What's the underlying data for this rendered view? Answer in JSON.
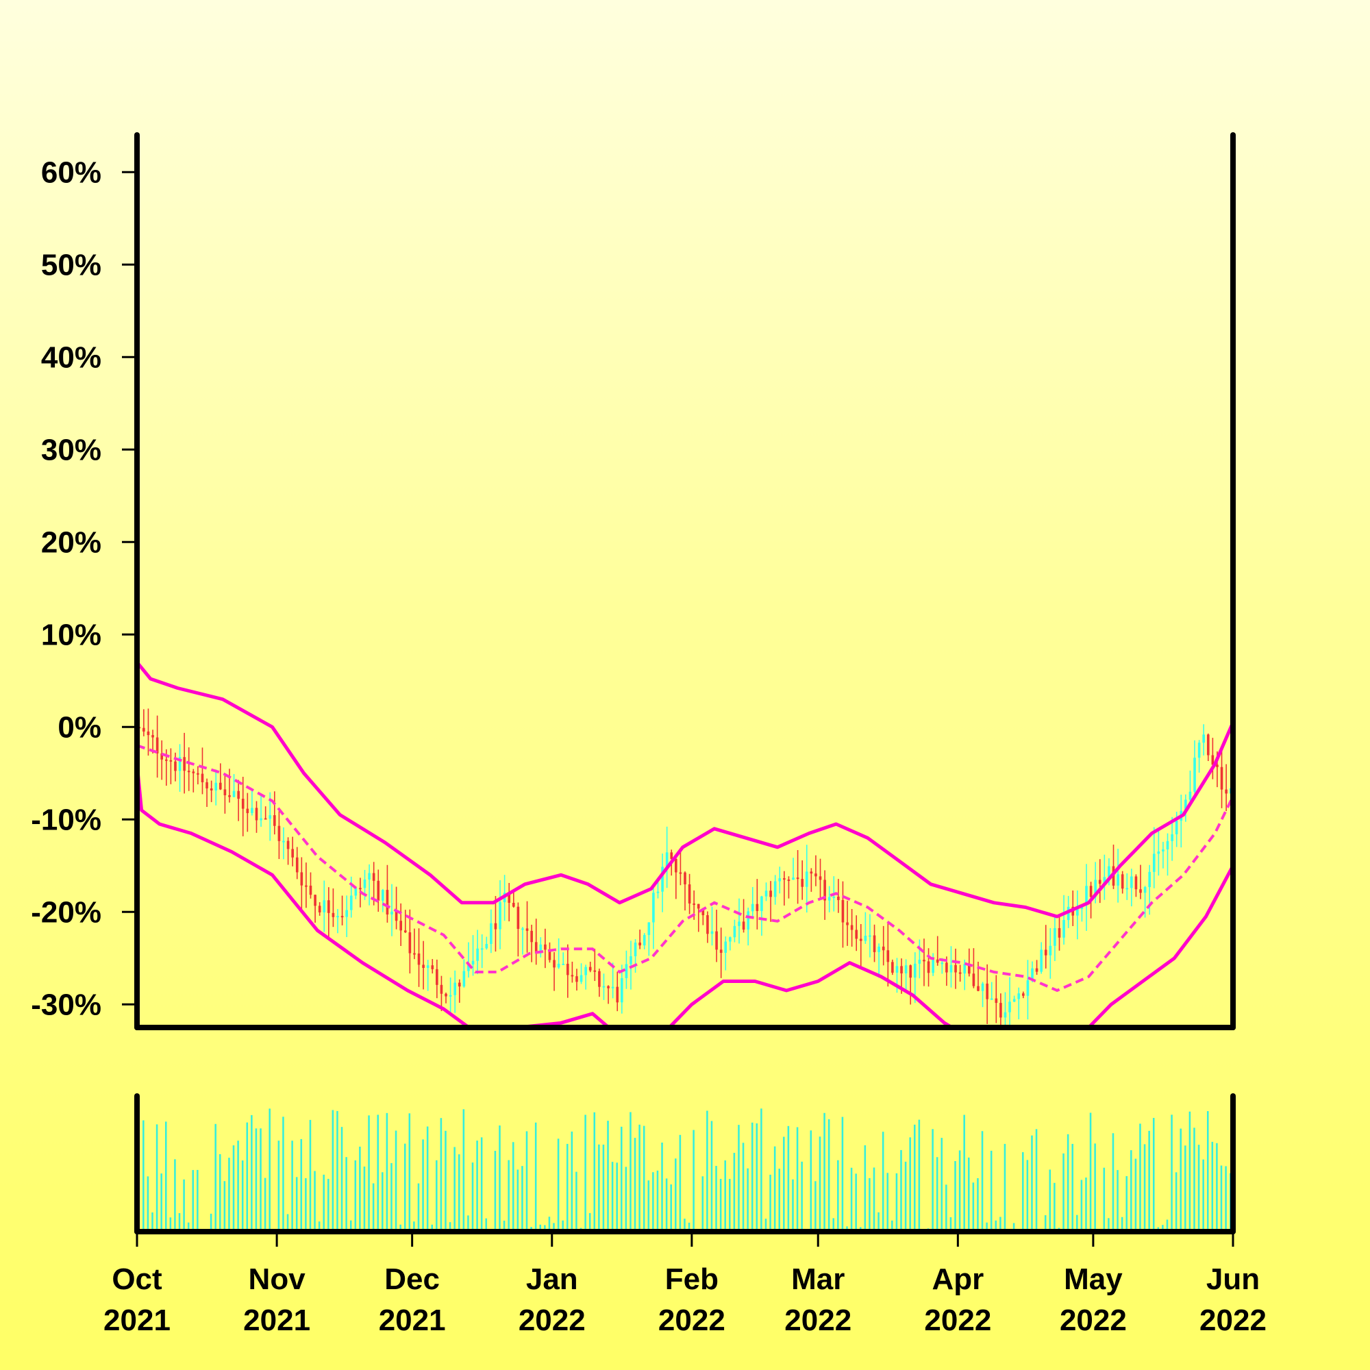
{
  "chart_data": {
    "type": "candlestick",
    "title": "",
    "xlabel": "",
    "ylabel": "",
    "y_unit": "%",
    "ylim": [
      -32.5,
      67.5
    ],
    "y_ticks": [
      60,
      50,
      40,
      30,
      20,
      10,
      0,
      -10,
      -20,
      -30
    ],
    "y_tick_labels": [
      "60%",
      "50%",
      "40%",
      "30%",
      "20%",
      "10%",
      "0%",
      "-10%",
      "-20%",
      "-30%"
    ],
    "x_range": [
      "2021-10-01",
      "2022-06-01"
    ],
    "x_ticks": [
      {
        "date": "2021-10-01",
        "month": "Oct",
        "year": "2021"
      },
      {
        "date": "2021-11-01",
        "month": "Nov",
        "year": "2021"
      },
      {
        "date": "2021-12-01",
        "month": "Dec",
        "year": "2021"
      },
      {
        "date": "2022-01-01",
        "month": "Jan",
        "year": "2022"
      },
      {
        "date": "2022-02-01",
        "month": "Feb",
        "year": "2022"
      },
      {
        "date": "2022-03-01",
        "month": "Mar",
        "year": "2022"
      },
      {
        "date": "2022-04-01",
        "month": "Apr",
        "year": "2022"
      },
      {
        "date": "2022-05-01",
        "month": "May",
        "year": "2022"
      },
      {
        "date": "2022-06-01",
        "month": "Jun",
        "year": "2022"
      }
    ],
    "grid": false,
    "legend": "none",
    "colors": {
      "up": "#33ffee",
      "down": "#ee3333",
      "band": "#ff00cc",
      "middle": "#ff33cc",
      "volume": "#33eedd",
      "axes": "#000000"
    },
    "price_path": [
      [
        "2021-10-01",
        0
      ],
      [
        "2021-10-10",
        -4
      ],
      [
        "2021-10-20",
        -7
      ],
      [
        "2021-10-31",
        -10
      ],
      [
        "2021-11-10",
        -19
      ],
      [
        "2021-11-16",
        -20
      ],
      [
        "2021-11-22",
        -16
      ],
      [
        "2021-12-01",
        -24
      ],
      [
        "2021-12-10",
        -29
      ],
      [
        "2021-12-16",
        -25
      ],
      [
        "2021-12-22",
        -19
      ],
      [
        "2021-12-28",
        -23
      ],
      [
        "2022-01-04",
        -26
      ],
      [
        "2022-01-10",
        -27
      ],
      [
        "2022-01-16",
        -29
      ],
      [
        "2022-01-22",
        -22
      ],
      [
        "2022-01-27",
        -14
      ],
      [
        "2022-02-01",
        -18
      ],
      [
        "2022-02-08",
        -24
      ],
      [
        "2022-02-15",
        -20
      ],
      [
        "2022-02-22",
        -16
      ],
      [
        "2022-03-01",
        -17
      ],
      [
        "2022-03-10",
        -22
      ],
      [
        "2022-03-20",
        -27
      ],
      [
        "2022-03-28",
        -25
      ],
      [
        "2022-04-05",
        -27
      ],
      [
        "2022-04-12",
        -31
      ],
      [
        "2022-04-20",
        -25
      ],
      [
        "2022-04-28",
        -19
      ],
      [
        "2022-05-05",
        -16
      ],
      [
        "2022-05-12",
        -17
      ],
      [
        "2022-05-20",
        -11
      ],
      [
        "2022-05-26",
        -1
      ],
      [
        "2022-05-31",
        -7
      ]
    ],
    "bollinger_upper": [
      [
        "2021-10-01",
        7
      ],
      [
        "2021-10-04",
        5.2
      ],
      [
        "2021-10-10",
        4.2
      ],
      [
        "2021-10-20",
        3
      ],
      [
        "2021-10-31",
        0
      ],
      [
        "2021-11-07",
        -5
      ],
      [
        "2021-11-15",
        -9.5
      ],
      [
        "2021-11-25",
        -12.5
      ],
      [
        "2021-12-05",
        -16
      ],
      [
        "2021-12-12",
        -19
      ],
      [
        "2021-12-19",
        -19
      ],
      [
        "2021-12-26",
        -17
      ],
      [
        "2022-01-03",
        -16
      ],
      [
        "2022-01-09",
        -17
      ],
      [
        "2022-01-16",
        -19
      ],
      [
        "2022-01-23",
        -17.5
      ],
      [
        "2022-01-30",
        -13
      ],
      [
        "2022-02-06",
        -11
      ],
      [
        "2022-02-13",
        -12
      ],
      [
        "2022-02-20",
        -13
      ],
      [
        "2022-02-27",
        -11.5
      ],
      [
        "2022-03-05",
        -10.5
      ],
      [
        "2022-03-12",
        -12
      ],
      [
        "2022-03-19",
        -14.5
      ],
      [
        "2022-03-26",
        -17
      ],
      [
        "2022-04-02",
        -18
      ],
      [
        "2022-04-09",
        -19
      ],
      [
        "2022-04-16",
        -19.5
      ],
      [
        "2022-04-23",
        -20.5
      ],
      [
        "2022-04-30",
        -19
      ],
      [
        "2022-05-07",
        -15
      ],
      [
        "2022-05-14",
        -11.5
      ],
      [
        "2022-05-21",
        -9.5
      ],
      [
        "2022-05-28",
        -4
      ],
      [
        "2022-06-01",
        0.5
      ]
    ],
    "bollinger_middle": [
      [
        "2021-10-01",
        -2
      ],
      [
        "2021-10-10",
        -3.5
      ],
      [
        "2021-10-20",
        -5
      ],
      [
        "2021-10-31",
        -8
      ],
      [
        "2021-11-10",
        -14
      ],
      [
        "2021-11-20",
        -18
      ],
      [
        "2021-11-30",
        -20.5
      ],
      [
        "2021-12-08",
        -22.5
      ],
      [
        "2021-12-15",
        -26.5
      ],
      [
        "2021-12-20",
        -26.5
      ],
      [
        "2021-12-27",
        -24.5
      ],
      [
        "2022-01-03",
        -24
      ],
      [
        "2022-01-10",
        -24
      ],
      [
        "2022-01-16",
        -26.5
      ],
      [
        "2022-01-23",
        -25
      ],
      [
        "2022-01-30",
        -21
      ],
      [
        "2022-02-06",
        -19
      ],
      [
        "2022-02-13",
        -20.5
      ],
      [
        "2022-02-20",
        -21
      ],
      [
        "2022-02-27",
        -19
      ],
      [
        "2022-03-05",
        -18
      ],
      [
        "2022-03-12",
        -19.5
      ],
      [
        "2022-03-19",
        -22
      ],
      [
        "2022-03-26",
        -25
      ],
      [
        "2022-04-02",
        -25.5
      ],
      [
        "2022-04-09",
        -26.5
      ],
      [
        "2022-04-16",
        -27
      ],
      [
        "2022-04-23",
        -28.5
      ],
      [
        "2022-04-30",
        -27
      ],
      [
        "2022-05-07",
        -23
      ],
      [
        "2022-05-14",
        -19
      ],
      [
        "2022-05-21",
        -16
      ],
      [
        "2022-05-28",
        -11.5
      ],
      [
        "2022-06-01",
        -7.5
      ]
    ],
    "bollinger_lower": [
      [
        "2021-10-01",
        -4
      ],
      [
        "2021-10-02",
        -9
      ],
      [
        "2021-10-06",
        -10.5
      ],
      [
        "2021-10-13",
        -11.5
      ],
      [
        "2021-10-22",
        -13.5
      ],
      [
        "2021-10-31",
        -16
      ],
      [
        "2021-11-10",
        -22
      ],
      [
        "2021-11-20",
        -25.5
      ],
      [
        "2021-11-30",
        -28.5
      ],
      [
        "2021-12-08",
        -30.5
      ],
      [
        "2021-12-15",
        -33
      ],
      [
        "2022-01-03",
        -32
      ],
      [
        "2022-01-10",
        -31
      ],
      [
        "2022-01-16",
        -33.5
      ],
      [
        "2022-01-25",
        -33.5
      ],
      [
        "2022-02-01",
        -30
      ],
      [
        "2022-02-08",
        -27.5
      ],
      [
        "2022-02-15",
        -27.5
      ],
      [
        "2022-02-22",
        -28.5
      ],
      [
        "2022-03-01",
        -27.5
      ],
      [
        "2022-03-08",
        -25.5
      ],
      [
        "2022-03-15",
        -27
      ],
      [
        "2022-03-22",
        -29
      ],
      [
        "2022-03-29",
        -32
      ],
      [
        "2022-04-05",
        -34
      ],
      [
        "2022-04-20",
        -34
      ],
      [
        "2022-04-28",
        -33.5
      ],
      [
        "2022-05-05",
        -30
      ],
      [
        "2022-05-12",
        -27.5
      ],
      [
        "2022-05-19",
        -25
      ],
      [
        "2022-05-26",
        -20.5
      ],
      [
        "2022-06-01",
        -15
      ]
    ]
  }
}
